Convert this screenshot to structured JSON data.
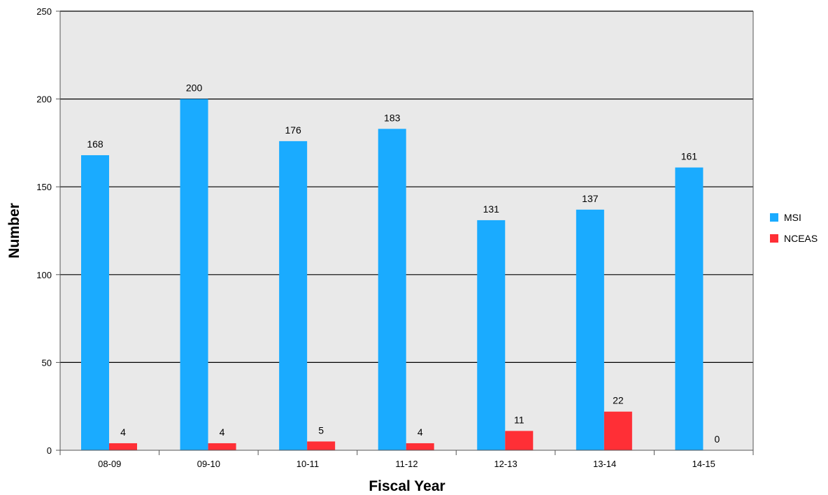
{
  "chart_data": {
    "type": "bar",
    "title": "",
    "xlabel": "Fiscal Year",
    "ylabel": "Number",
    "categories": [
      "08-09",
      "09-10",
      "10-11",
      "11-12",
      "12-13",
      "13-14",
      "14-15"
    ],
    "series": [
      {
        "name": "MSI",
        "color": "#1AABFF",
        "values": [
          168,
          200,
          176,
          183,
          131,
          137,
          161
        ]
      },
      {
        "name": "NCEAS",
        "color": "#FF2F36",
        "values": [
          4,
          4,
          5,
          4,
          11,
          22,
          0
        ]
      }
    ],
    "ylim": [
      0,
      250
    ],
    "yticks": [
      0,
      50,
      100,
      150,
      200,
      250
    ],
    "grid": true,
    "legend_position": "right",
    "plot_background": "#e9e9e9"
  }
}
